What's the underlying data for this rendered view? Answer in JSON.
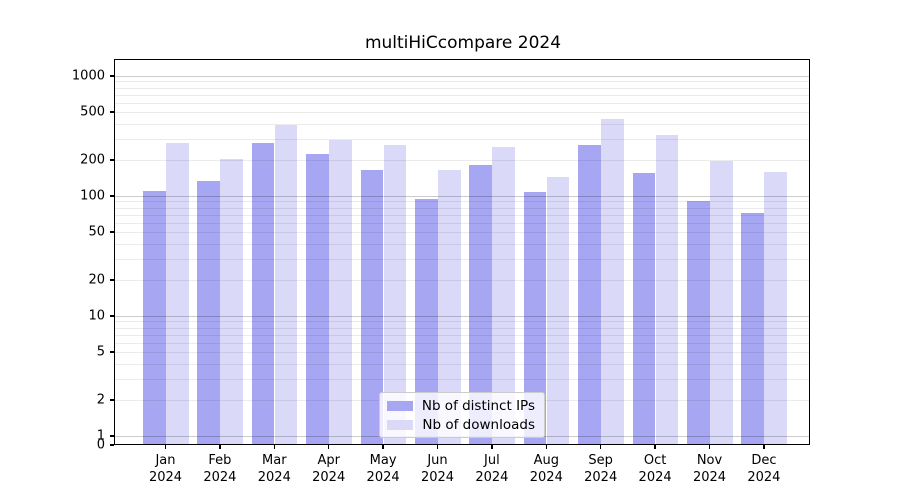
{
  "title": "multiHiCcompare 2024",
  "colors": {
    "distinct_ips": "#a6a6f2",
    "downloads": "#dadaf8",
    "axis": "#000000",
    "major_grid_rgba": "rgba(0,0,0,0.20)",
    "minor_grid_rgba": "rgba(0,0,0,0.08)",
    "legend_border": "#cccccc",
    "background": "#ffffff"
  },
  "chart_data": {
    "type": "bar",
    "title": "multiHiCcompare 2024",
    "xlabel": "",
    "ylabel": "",
    "yscale": "log",
    "grid": true,
    "legend_position": "lower center",
    "categories": [
      "Jan 2024",
      "Feb 2024",
      "Mar 2024",
      "Apr 2024",
      "May 2024",
      "Jun 2024",
      "Jul 2024",
      "Aug 2024",
      "Sep 2024",
      "Oct 2024",
      "Nov 2024",
      "Dec 2024"
    ],
    "month_labels": [
      "Jan",
      "Feb",
      "Mar",
      "Apr",
      "May",
      "Jun",
      "Jul",
      "Aug",
      "Sep",
      "Oct",
      "Nov",
      "Dec"
    ],
    "year_label": "2024",
    "y_ticks": [
      0,
      1,
      2,
      5,
      10,
      20,
      50,
      100,
      200,
      500,
      1000
    ],
    "ylim": [
      0,
      1400
    ],
    "series": [
      {
        "name": "Nb of distinct IPs",
        "values": [
          110,
          133,
          276,
          222,
          165,
          94,
          181,
          107,
          265,
          155,
          90,
          72
        ]
      },
      {
        "name": "Nb of downloads",
        "values": [
          277,
          203,
          388,
          291,
          266,
          166,
          256,
          145,
          440,
          320,
          197,
          160
        ]
      }
    ]
  }
}
